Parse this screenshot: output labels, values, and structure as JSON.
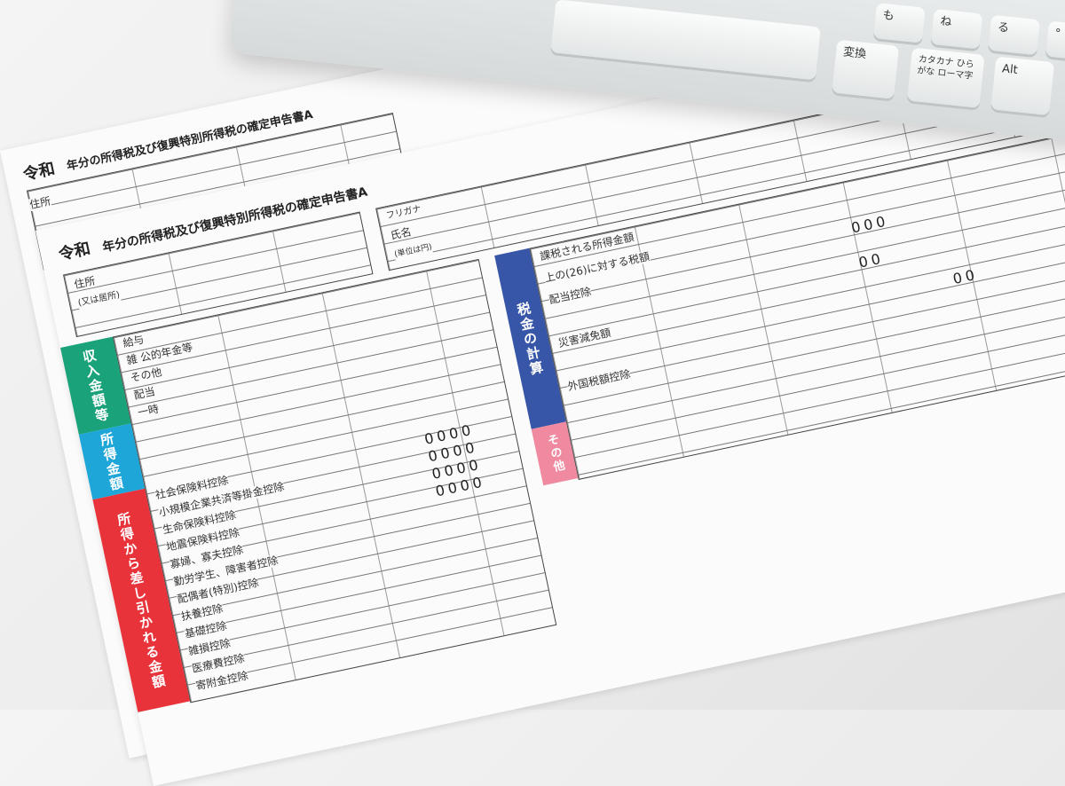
{
  "form_back": {
    "title_era": "令和",
    "title": "年分の所得税及び復興特別所得税の確定申告書A",
    "address_label": "住所"
  },
  "form_front": {
    "title_era": "令和",
    "title": "年分の所得税及び復興特別所得税の確定申告書A",
    "address_label": "住所",
    "address_sub": "(又は居所)",
    "name_label": "氏名",
    "furigana_label": "フリガナ",
    "unit_label": "(単位は円)",
    "income_rows": [
      "給与",
      "雑 公的年金等",
      "その他",
      "配当",
      "一時"
    ],
    "deduction_rows": [
      "社会保険料控除",
      "小規模企業共済等掛金控除",
      "生命保険料控除",
      "地震保険料控除",
      "寡婦、寡夫控除",
      "勤労学生、障害者控除",
      "配偶者(特別)控除",
      "扶養控除",
      "基礎控除",
      "雑損控除",
      "医療費控除",
      "寄附金控除"
    ],
    "tax_rows": [
      "課税される所得金額",
      "上の(26)に対する税額",
      "配当控除",
      "災害減免額",
      "外国税額控除"
    ],
    "zeros": "0000",
    "zeros_short": "000",
    "zeros_pair": "00"
  },
  "bands": [
    {
      "label": "収入金額等",
      "color": "#1aa27a"
    },
    {
      "label": "所得金額",
      "color": "#1fa6d8"
    },
    {
      "label": "所得から差し引かれる金額",
      "color": "#e8333a"
    },
    {
      "label": "税金の計算",
      "color": "#3856a8"
    },
    {
      "label": "その他",
      "color": "#f08aa0"
    }
  ],
  "keyboard": {
    "keys": [
      "変換",
      "カタカナ ひらがな ローマ字",
      "Alt",
      "も",
      "ね",
      "る",
      "°"
    ]
  }
}
